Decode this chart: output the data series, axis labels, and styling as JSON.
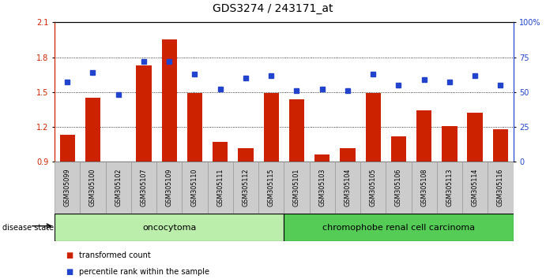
{
  "title": "GDS3274 / 243171_at",
  "samples": [
    "GSM305099",
    "GSM305100",
    "GSM305102",
    "GSM305107",
    "GSM305109",
    "GSM305110",
    "GSM305111",
    "GSM305112",
    "GSM305115",
    "GSM305101",
    "GSM305103",
    "GSM305104",
    "GSM305105",
    "GSM305106",
    "GSM305108",
    "GSM305113",
    "GSM305114",
    "GSM305116"
  ],
  "bar_values": [
    1.13,
    1.45,
    0.88,
    1.73,
    1.95,
    1.49,
    1.07,
    1.02,
    1.49,
    1.44,
    0.96,
    1.02,
    1.49,
    1.12,
    1.34,
    1.21,
    1.32,
    1.18
  ],
  "percentile_values": [
    57,
    64,
    48,
    72,
    72,
    63,
    52,
    60,
    62,
    51,
    52,
    51,
    63,
    55,
    59,
    57,
    62,
    55
  ],
  "bar_color": "#cc2200",
  "percentile_color": "#2244cc",
  "ylim_left": [
    0.9,
    2.1
  ],
  "ylim_right": [
    0,
    100
  ],
  "yticks_left": [
    0.9,
    1.2,
    1.5,
    1.8,
    2.1
  ],
  "yticks_right": [
    0,
    25,
    50,
    75,
    100
  ],
  "ytick_labels_left": [
    "0.9",
    "1.2",
    "1.5",
    "1.8",
    "2.1"
  ],
  "ytick_labels_right": [
    "0",
    "25",
    "50",
    "75",
    "100%"
  ],
  "group1_label": "oncocytoma",
  "group2_label": "chromophobe renal cell carcinoma",
  "group1_count": 9,
  "group2_count": 9,
  "group1_color": "#bbeeaa",
  "group2_color": "#55cc55",
  "disease_state_label": "disease state",
  "legend1_label": "transformed count",
  "legend2_label": "percentile rank within the sample",
  "bg_color": "#ffffff",
  "plot_bg_color": "#ffffff",
  "tick_bg_color": "#cccccc",
  "dotted_line_color": "#000000",
  "title_fontsize": 10,
  "tick_fontsize": 7,
  "bar_width": 0.6
}
